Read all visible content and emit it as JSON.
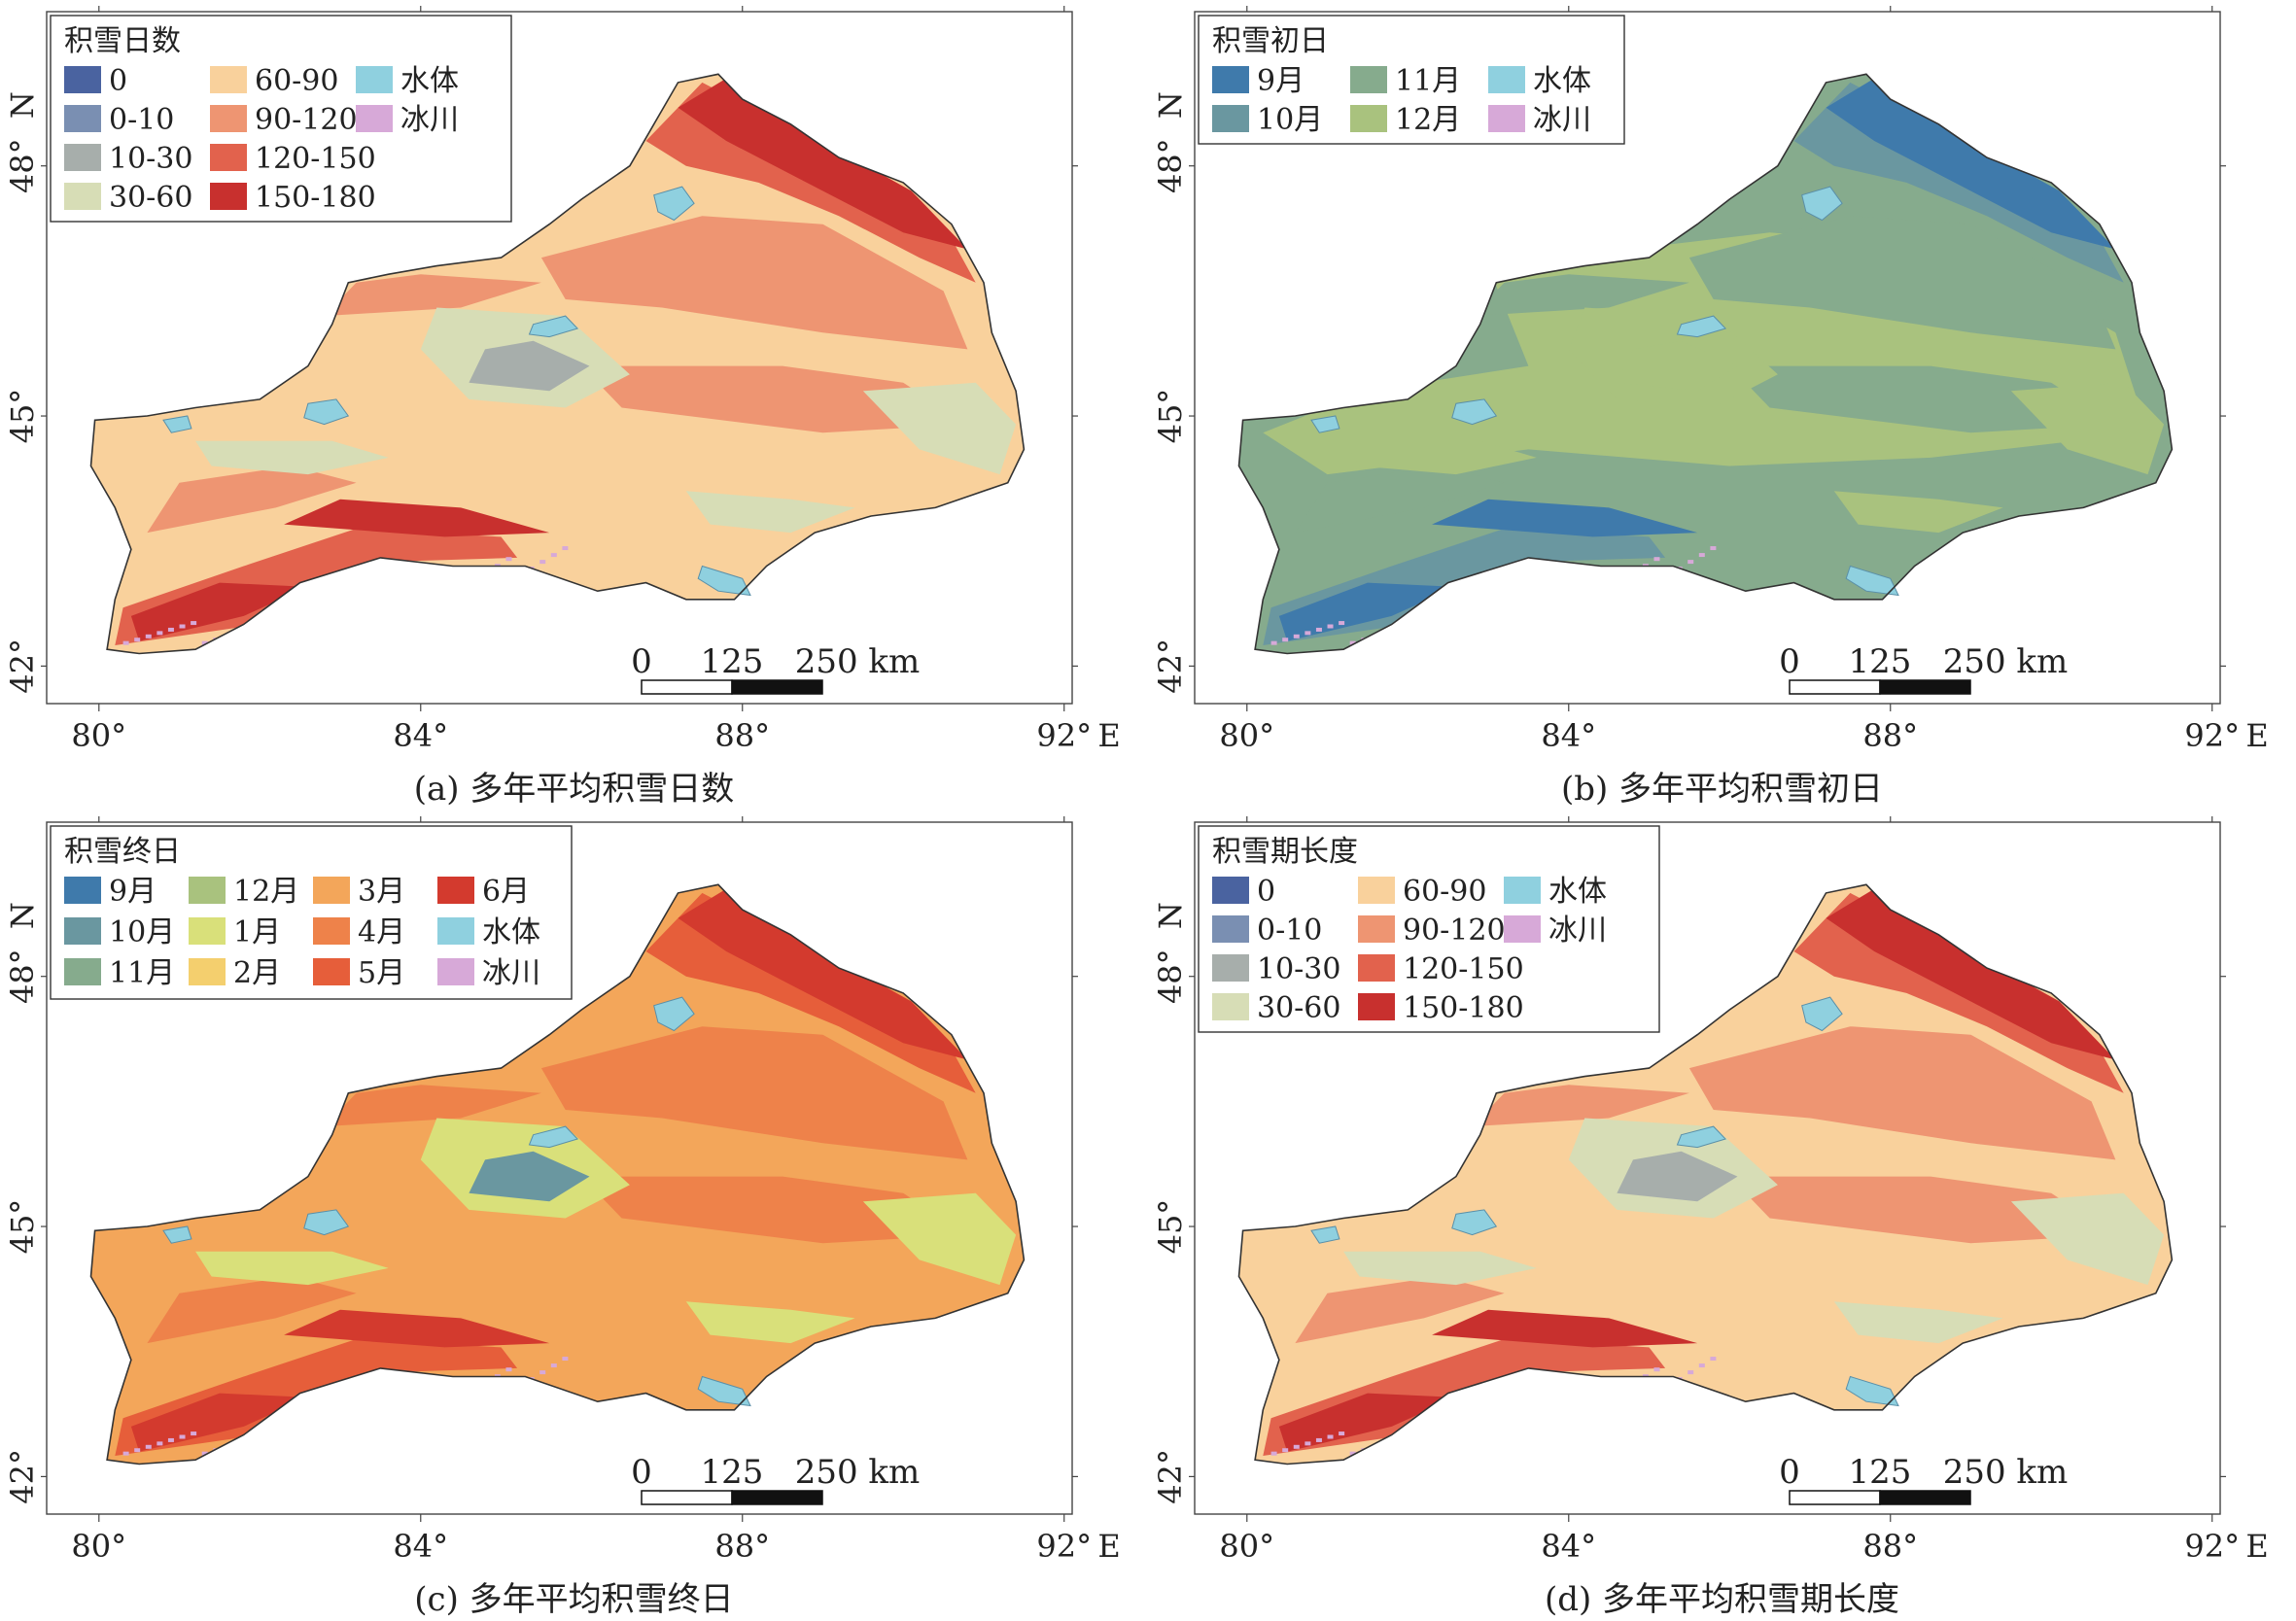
{
  "axes": {
    "lon_ticks": [
      "80°",
      "84°",
      "88°",
      "92°"
    ],
    "lon_unit": "E",
    "lat_ticks": [
      "42°",
      "45°",
      "48°"
    ],
    "lat_unit": "N"
  },
  "scalebar": {
    "labels": [
      "0",
      "125",
      "250 km"
    ]
  },
  "panels": [
    {
      "caption": "(a) 多年平均积雪日数",
      "legend_title": "积雪日数",
      "theme": "days",
      "legend_columns": [
        [
          {
            "label": "0",
            "color": "#4a63a0"
          },
          {
            "label": "0-10",
            "color": "#7a8fb2"
          },
          {
            "label": "10-30",
            "color": "#a7aeab"
          },
          {
            "label": "30-60",
            "color": "#d7ddb6"
          }
        ],
        [
          {
            "label": "60-90",
            "color": "#f9d19c"
          },
          {
            "label": "90-120",
            "color": "#ee9572"
          },
          {
            "label": "120-150",
            "color": "#e2624d"
          },
          {
            "label": "150-180",
            "color": "#c8302e"
          }
        ],
        [
          {
            "label": "水体",
            "color": "#8fd0df"
          },
          {
            "label": "冰川",
            "color": "#d7a9d8"
          }
        ]
      ]
    },
    {
      "caption": "(b) 多年平均积雪初日",
      "legend_title": "积雪初日",
      "theme": "onset",
      "legend_columns": [
        [
          {
            "label": "9月",
            "color": "#3f7aab"
          },
          {
            "label": "10月",
            "color": "#6a97a0"
          }
        ],
        [
          {
            "label": "11月",
            "color": "#86ab8d"
          },
          {
            "label": "12月",
            "color": "#a9c27e"
          }
        ],
        [
          {
            "label": "水体",
            "color": "#8fd0df"
          },
          {
            "label": "冰川",
            "color": "#d7a9d8"
          }
        ]
      ]
    },
    {
      "caption": "(c) 多年平均积雪终日",
      "legend_title": "积雪终日",
      "theme": "end",
      "legend_columns": [
        [
          {
            "label": "9月",
            "color": "#3f7aab"
          },
          {
            "label": "10月",
            "color": "#6a97a0"
          },
          {
            "label": "11月",
            "color": "#86ab8d"
          }
        ],
        [
          {
            "label": "12月",
            "color": "#a9c27e"
          },
          {
            "label": "1月",
            "color": "#d9e07a"
          },
          {
            "label": "2月",
            "color": "#f4cf6e"
          }
        ],
        [
          {
            "label": "3月",
            "color": "#f3a65a"
          },
          {
            "label": "4月",
            "color": "#ee824a"
          },
          {
            "label": "5月",
            "color": "#e65e3a"
          }
        ],
        [
          {
            "label": "6月",
            "color": "#d33a2e"
          },
          {
            "label": "水体",
            "color": "#8fd0df"
          },
          {
            "label": "冰川",
            "color": "#d7a9d8"
          }
        ]
      ]
    },
    {
      "caption": "(d) 多年平均积雪期长度",
      "legend_title": "积雪期长度",
      "theme": "days",
      "legend_columns": [
        [
          {
            "label": "0",
            "color": "#4a63a0"
          },
          {
            "label": "0-10",
            "color": "#7a8fb2"
          },
          {
            "label": "10-30",
            "color": "#a7aeab"
          },
          {
            "label": "30-60",
            "color": "#d7ddb6"
          }
        ],
        [
          {
            "label": "60-90",
            "color": "#f9d19c"
          },
          {
            "label": "90-120",
            "color": "#ee9572"
          },
          {
            "label": "120-150",
            "color": "#e2624d"
          },
          {
            "label": "150-180",
            "color": "#c8302e"
          }
        ],
        [
          {
            "label": "水体",
            "color": "#8fd0df"
          },
          {
            "label": "冰川",
            "color": "#d7a9d8"
          }
        ]
      ]
    }
  ]
}
